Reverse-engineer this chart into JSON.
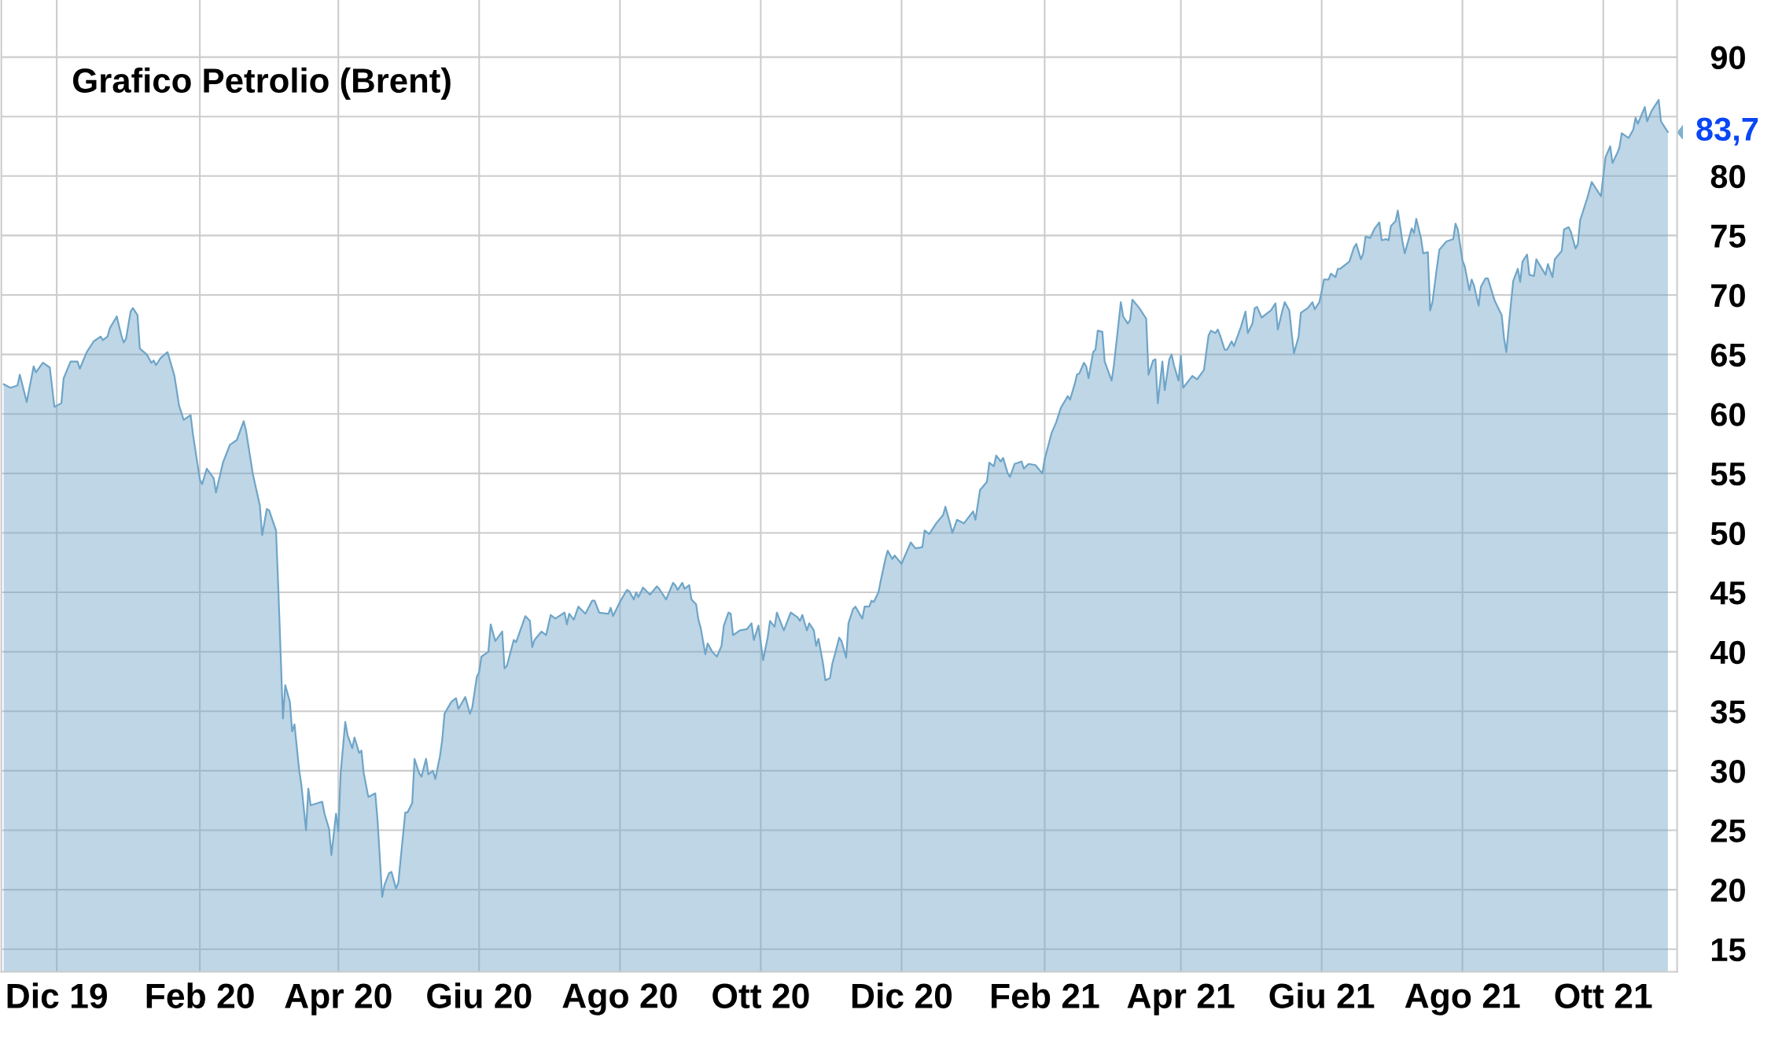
{
  "chart_data": {
    "type": "area",
    "title": "Grafico Petrolio (Brent)",
    "x": [
      "2019-11-08",
      "2019-11-11",
      "2019-11-14",
      "2019-11-15",
      "2019-11-18",
      "2019-11-21",
      "2019-11-22",
      "2019-11-25",
      "2019-11-28",
      "2019-11-30",
      "2019-12-03",
      "2019-12-04",
      "2019-12-07",
      "2019-12-10",
      "2019-12-11",
      "2019-12-14",
      "2019-12-17",
      "2019-12-20",
      "2019-12-21",
      "2019-12-23",
      "2019-12-24",
      "2019-12-27",
      "2019-12-29",
      "2019-12-30",
      "2019-12-31",
      "2020-01-02",
      "2020-01-03",
      "2020-01-05",
      "2020-01-06",
      "2020-01-09",
      "2020-01-11",
      "2020-01-12",
      "2020-01-13",
      "2020-01-15",
      "2020-01-18",
      "2020-01-21",
      "2020-01-23",
      "2020-01-25",
      "2020-01-28",
      "2020-01-29",
      "2020-02-01",
      "2020-02-02",
      "2020-02-04",
      "2020-02-07",
      "2020-02-08",
      "2020-02-11",
      "2020-02-14",
      "2020-02-17",
      "2020-02-20",
      "2020-02-21",
      "2020-02-24",
      "2020-02-27",
      "2020-02-28",
      "2020-03-01",
      "2020-03-02",
      "2020-03-05",
      "2020-03-06",
      "2020-03-08",
      "2020-03-09",
      "2020-03-11",
      "2020-03-12",
      "2020-03-13",
      "2020-03-15",
      "2020-03-16",
      "2020-03-18",
      "2020-03-19",
      "2020-03-20",
      "2020-03-25",
      "2020-03-26",
      "2020-03-28",
      "2020-03-29",
      "2020-03-31",
      "2020-04-01",
      "2020-04-02",
      "2020-04-04",
      "2020-04-05",
      "2020-04-07",
      "2020-04-08",
      "2020-04-10",
      "2020-04-11",
      "2020-04-12",
      "2020-04-14",
      "2020-04-17",
      "2020-04-18",
      "2020-04-20",
      "2020-04-21",
      "2020-04-23",
      "2020-04-24",
      "2020-04-26",
      "2020-04-27",
      "2020-04-28",
      "2020-04-30",
      "2020-05-01",
      "2020-05-03",
      "2020-05-04",
      "2020-05-06",
      "2020-05-07",
      "2020-05-09",
      "2020-05-10",
      "2020-05-12",
      "2020-05-13",
      "2020-05-15",
      "2020-05-16",
      "2020-05-17",
      "2020-05-20",
      "2020-05-22",
      "2020-05-23",
      "2020-05-26",
      "2020-05-28",
      "2020-05-29",
      "2020-05-31",
      "2020-06-01",
      "2020-06-02",
      "2020-06-05",
      "2020-06-06",
      "2020-06-08",
      "2020-06-11",
      "2020-06-12",
      "2020-06-13",
      "2020-06-16",
      "2020-06-17",
      "2020-06-21",
      "2020-06-23",
      "2020-06-24",
      "2020-06-25",
      "2020-06-28",
      "2020-06-30",
      "2020-07-02",
      "2020-07-04",
      "2020-07-08",
      "2020-07-09",
      "2020-07-10",
      "2020-07-12",
      "2020-07-14",
      "2020-07-17",
      "2020-07-20",
      "2020-07-21",
      "2020-07-23",
      "2020-07-27",
      "2020-07-28",
      "2020-07-29",
      "2020-08-01",
      "2020-08-04",
      "2020-08-05",
      "2020-08-07",
      "2020-08-08",
      "2020-08-09",
      "2020-08-11",
      "2020-08-14",
      "2020-08-17",
      "2020-08-18",
      "2020-08-21",
      "2020-08-24",
      "2020-08-25",
      "2020-08-26",
      "2020-08-28",
      "2020-08-29",
      "2020-08-31",
      "2020-09-01",
      "2020-09-03",
      "2020-09-04",
      "2020-09-05",
      "2020-09-07",
      "2020-09-08",
      "2020-09-10",
      "2020-09-12",
      "2020-09-14",
      "2020-09-15",
      "2020-09-17",
      "2020-09-18",
      "2020-09-19",
      "2020-09-22",
      "2020-09-25",
      "2020-09-27",
      "2020-09-28",
      "2020-09-30",
      "2020-10-01",
      "2020-10-02",
      "2020-10-04",
      "2020-10-05",
      "2020-10-07",
      "2020-10-08",
      "2020-10-09",
      "2020-10-11",
      "2020-10-14",
      "2020-10-17",
      "2020-10-18",
      "2020-10-19",
      "2020-10-21",
      "2020-10-22",
      "2020-10-24",
      "2020-10-25",
      "2020-10-26",
      "2020-10-28",
      "2020-10-29",
      "2020-10-31",
      "2020-11-01",
      "2020-11-02",
      "2020-11-04",
      "2020-11-05",
      "2020-11-07",
      "2020-11-08",
      "2020-11-10",
      "2020-11-11",
      "2020-11-14",
      "2020-11-15",
      "2020-11-17",
      "2020-11-18",
      "2020-11-19",
      "2020-11-21",
      "2020-11-22",
      "2020-11-24",
      "2020-11-25",
      "2020-11-27",
      "2020-11-28",
      "2020-12-01",
      "2020-12-05",
      "2020-12-07",
      "2020-12-10",
      "2020-12-11",
      "2020-12-13",
      "2020-12-16",
      "2020-12-19",
      "2020-12-20",
      "2020-12-22",
      "2020-12-23",
      "2020-12-25",
      "2020-12-28",
      "2021-01-01",
      "2021-01-02",
      "2021-01-04",
      "2021-01-07",
      "2021-01-08",
      "2021-01-10",
      "2021-01-11",
      "2021-01-13",
      "2021-01-14",
      "2021-01-16",
      "2021-01-17",
      "2021-01-19",
      "2021-01-22",
      "2021-01-23",
      "2021-01-25",
      "2021-01-28",
      "2021-01-31",
      "2021-02-01",
      "2021-02-04",
      "2021-02-06",
      "2021-02-08",
      "2021-02-11",
      "2021-02-12",
      "2021-02-14",
      "2021-02-15",
      "2021-02-16",
      "2021-02-18",
      "2021-02-19",
      "2021-02-20",
      "2021-02-22",
      "2021-02-23",
      "2021-02-24",
      "2021-02-26",
      "2021-02-27",
      "2021-03-02",
      "2021-03-03",
      "2021-03-06",
      "2021-03-07",
      "2021-03-09",
      "2021-03-10",
      "2021-03-11",
      "2021-03-14",
      "2021-03-17",
      "2021-03-18",
      "2021-03-20",
      "2021-03-21",
      "2021-03-22",
      "2021-03-24",
      "2021-03-25",
      "2021-03-27",
      "2021-03-28",
      "2021-03-29",
      "2021-03-31",
      "2021-04-01",
      "2021-04-02",
      "2021-04-06",
      "2021-04-08",
      "2021-04-11",
      "2021-04-13",
      "2021-04-14",
      "2021-04-16",
      "2021-04-17",
      "2021-04-18",
      "2021-04-20",
      "2021-04-21",
      "2021-04-23",
      "2021-04-24",
      "2021-04-27",
      "2021-04-29",
      "2021-04-30",
      "2021-05-02",
      "2021-05-03",
      "2021-05-04",
      "2021-05-06",
      "2021-05-10",
      "2021-05-12",
      "2021-05-13",
      "2021-05-15",
      "2021-05-16",
      "2021-05-18",
      "2021-05-19",
      "2021-05-20",
      "2021-05-22",
      "2021-05-23",
      "2021-05-26",
      "2021-05-28",
      "2021-05-29",
      "2021-05-31",
      "2021-06-01",
      "2021-06-02",
      "2021-06-04",
      "2021-06-05",
      "2021-06-07",
      "2021-06-08",
      "2021-06-09",
      "2021-06-11",
      "2021-06-13",
      "2021-06-15",
      "2021-06-16",
      "2021-06-18",
      "2021-06-19",
      "2021-06-20",
      "2021-06-22",
      "2021-06-24",
      "2021-06-26",
      "2021-06-27",
      "2021-06-29",
      "2021-06-30",
      "2021-07-01",
      "2021-07-03",
      "2021-07-04",
      "2021-07-06",
      "2021-07-07",
      "2021-07-10",
      "2021-07-11",
      "2021-07-12",
      "2021-07-14",
      "2021-07-15",
      "2021-07-17",
      "2021-07-18",
      "2021-07-19",
      "2021-07-21",
      "2021-07-22",
      "2021-07-25",
      "2021-07-28",
      "2021-07-29",
      "2021-07-30",
      "2021-08-01",
      "2021-08-02",
      "2021-08-04",
      "2021-08-05",
      "2021-08-06",
      "2021-08-08",
      "2021-08-09",
      "2021-08-11",
      "2021-08-12",
      "2021-08-15",
      "2021-08-18",
      "2021-08-19",
      "2021-08-20",
      "2021-08-22",
      "2021-08-23",
      "2021-08-25",
      "2021-08-26",
      "2021-08-27",
      "2021-08-29",
      "2021-08-30",
      "2021-09-01",
      "2021-09-02",
      "2021-09-06",
      "2021-09-07",
      "2021-09-09",
      "2021-09-10",
      "2021-09-13",
      "2021-09-14",
      "2021-09-16",
      "2021-09-17",
      "2021-09-19",
      "2021-09-20",
      "2021-09-21",
      "2021-09-24",
      "2021-09-26",
      "2021-09-30",
      "2021-10-01",
      "2021-10-02",
      "2021-10-04",
      "2021-10-05",
      "2021-10-07",
      "2021-10-08",
      "2021-10-09",
      "2021-10-12",
      "2021-10-14",
      "2021-10-15",
      "2021-10-16",
      "2021-10-19",
      "2021-10-20",
      "2021-10-22",
      "2021-10-25",
      "2021-10-26",
      "2021-10-27",
      "2021-10-29"
    ],
    "series": [
      {
        "color": "#6fa5c8",
        "values": [
          62.5,
          62.2,
          62.4,
          63.3,
          61.0,
          64.0,
          63.5,
          64.3,
          63.9,
          60.6,
          60.9,
          63.0,
          64.4,
          64.4,
          63.8,
          65.2,
          66.1,
          66.5,
          66.2,
          66.5,
          67.2,
          68.2,
          66.6,
          66.0,
          66.3,
          68.6,
          68.9,
          68.3,
          65.5,
          65.0,
          64.3,
          64.5,
          64.1,
          64.7,
          65.2,
          63.2,
          60.7,
          59.5,
          59.9,
          58.3,
          54.5,
          54.1,
          55.4,
          54.6,
          53.4,
          55.9,
          57.4,
          57.8,
          59.4,
          58.6,
          54.9,
          52.3,
          49.8,
          52.0,
          51.9,
          50.2,
          45.3,
          34.4,
          37.2,
          35.8,
          33.3,
          33.9,
          30.1,
          28.8,
          25.0,
          28.5,
          27.1,
          27.4,
          26.4,
          25.1,
          22.9,
          26.4,
          24.9,
          29.8,
          34.1,
          33.0,
          31.9,
          32.8,
          31.5,
          31.7,
          29.8,
          27.8,
          28.1,
          25.8,
          19.4,
          20.4,
          21.4,
          21.5,
          20.1,
          20.6,
          22.6,
          26.5,
          26.5,
          27.3,
          31.0,
          29.8,
          29.5,
          31.0,
          29.7,
          30.0,
          29.3,
          31.2,
          32.6,
          34.8,
          35.8,
          36.1,
          35.2,
          36.2,
          34.8,
          35.3,
          37.9,
          38.3,
          39.6,
          40.0,
          42.3,
          40.9,
          41.7,
          38.6,
          38.8,
          41.0,
          40.8,
          43.0,
          42.6,
          40.4,
          41.0,
          41.7,
          41.4,
          43.1,
          42.8,
          43.3,
          42.3,
          43.2,
          42.7,
          43.8,
          43.2,
          44.3,
          44.3,
          43.3,
          43.2,
          43.7,
          43.0,
          44.2,
          45.2,
          45.1,
          44.4,
          45.0,
          44.6,
          45.4,
          44.8,
          45.5,
          45.3,
          44.4,
          45.8,
          45.6,
          45.2,
          45.8,
          45.3,
          45.6,
          44.4,
          44.0,
          42.7,
          42.0,
          39.8,
          40.7,
          40.0,
          39.6,
          40.5,
          42.2,
          43.3,
          43.2,
          41.4,
          41.8,
          41.9,
          42.4,
          41.0,
          42.2,
          40.8,
          39.3,
          41.2,
          42.6,
          42.1,
          43.3,
          42.8,
          41.8,
          43.3,
          42.9,
          42.6,
          43.1,
          41.8,
          42.4,
          41.8,
          40.5,
          41.1,
          39.0,
          37.6,
          37.8,
          39.0,
          39.7,
          41.2,
          40.9,
          39.5,
          42.4,
          43.6,
          43.8,
          42.8,
          43.8,
          43.8,
          44.3,
          44.2,
          45.0,
          46.0,
          47.8,
          48.5,
          47.8,
          48.1,
          47.4,
          49.2,
          48.7,
          48.8,
          50.2,
          49.9,
          50.8,
          51.5,
          52.2,
          50.8,
          50.0,
          51.1,
          50.8,
          51.8,
          51.1,
          53.6,
          54.3,
          55.9,
          55.6,
          56.5,
          56.0,
          56.3,
          55.0,
          54.7,
          55.8,
          56.0,
          55.4,
          55.8,
          55.7,
          55.0,
          56.2,
          58.4,
          59.3,
          60.5,
          61.5,
          61.2,
          62.5,
          63.3,
          63.4,
          64.3,
          64.0,
          63.0,
          65.2,
          65.4,
          67.0,
          66.9,
          64.4,
          62.8,
          64.1,
          69.4,
          68.2,
          67.6,
          67.9,
          69.6,
          68.9,
          68.0,
          63.3,
          64.5,
          64.6,
          60.9,
          64.4,
          62.0,
          64.6,
          65.0,
          64.1,
          62.8,
          64.9,
          62.2,
          63.2,
          62.9,
          63.7,
          66.6,
          67.0,
          66.8,
          67.1,
          66.6,
          65.4,
          65.4,
          66.1,
          65.7,
          67.3,
          68.6,
          66.8,
          67.6,
          68.9,
          69.0,
          68.1,
          68.7,
          69.3,
          67.1,
          68.7,
          69.4,
          68.7,
          66.8,
          65.1,
          66.5,
          68.5,
          68.9,
          69.4,
          68.8,
          69.4,
          70.3,
          71.3,
          71.3,
          71.8,
          71.5,
          72.2,
          72.2,
          72.5,
          72.8,
          74.0,
          74.3,
          73.0,
          73.5,
          74.9,
          74.8,
          75.6,
          76.1,
          74.6,
          74.7,
          74.6,
          75.8,
          76.2,
          77.1,
          74.5,
          73.5,
          75.6,
          75.2,
          76.4,
          74.8,
          73.5,
          73.6,
          68.7,
          69.4,
          72.4,
          73.8,
          74.5,
          74.7,
          76.0,
          75.5,
          72.9,
          72.4,
          70.4,
          71.3,
          70.8,
          69.1,
          70.7,
          71.4,
          71.4,
          69.5,
          68.3,
          66.4,
          65.2,
          69.3,
          71.2,
          72.2,
          71.1,
          72.8,
          73.4,
          71.7,
          71.6,
          73.0,
          71.7,
          72.6,
          71.5,
          73.0,
          73.7,
          75.5,
          75.7,
          75.3,
          73.9,
          74.3,
          76.3,
          78.1,
          79.5,
          78.3,
          80.0,
          81.6,
          82.5,
          81.1,
          81.9,
          82.4,
          83.6,
          83.2,
          83.9,
          84.9,
          84.4,
          85.8,
          84.6,
          85.5,
          86.4,
          84.6,
          84.3,
          83.7
        ]
      }
    ],
    "xlim": [
      "2019-11-07",
      "2021-11-02"
    ],
    "xticks": [
      {
        "value": "2019-12-01",
        "label": "Dic 19"
      },
      {
        "value": "2020-02-01",
        "label": "Feb 20"
      },
      {
        "value": "2020-04-01",
        "label": "Apr 20"
      },
      {
        "value": "2020-06-01",
        "label": "Giu 20"
      },
      {
        "value": "2020-08-01",
        "label": "Ago 20"
      },
      {
        "value": "2020-10-01",
        "label": "Ott 20"
      },
      {
        "value": "2020-12-01",
        "label": "Dic 20"
      },
      {
        "value": "2021-02-01",
        "label": "Feb 21"
      },
      {
        "value": "2021-04-01",
        "label": "Apr 21"
      },
      {
        "value": "2021-06-01",
        "label": "Giu 21"
      },
      {
        "value": "2021-08-01",
        "label": "Ago 21"
      },
      {
        "value": "2021-10-01",
        "label": "Ott 21"
      }
    ],
    "ylim": [
      13.1,
      94.8
    ],
    "yticks": [
      15,
      20,
      25,
      30,
      35,
      40,
      45,
      50,
      55,
      60,
      65,
      70,
      75,
      80,
      {
        "value": 85,
        "label": null
      },
      90
    ],
    "grid": true,
    "annotations": [
      {
        "text": "83,7",
        "x": "2021-10-29",
        "y": 83.7
      }
    ]
  }
}
